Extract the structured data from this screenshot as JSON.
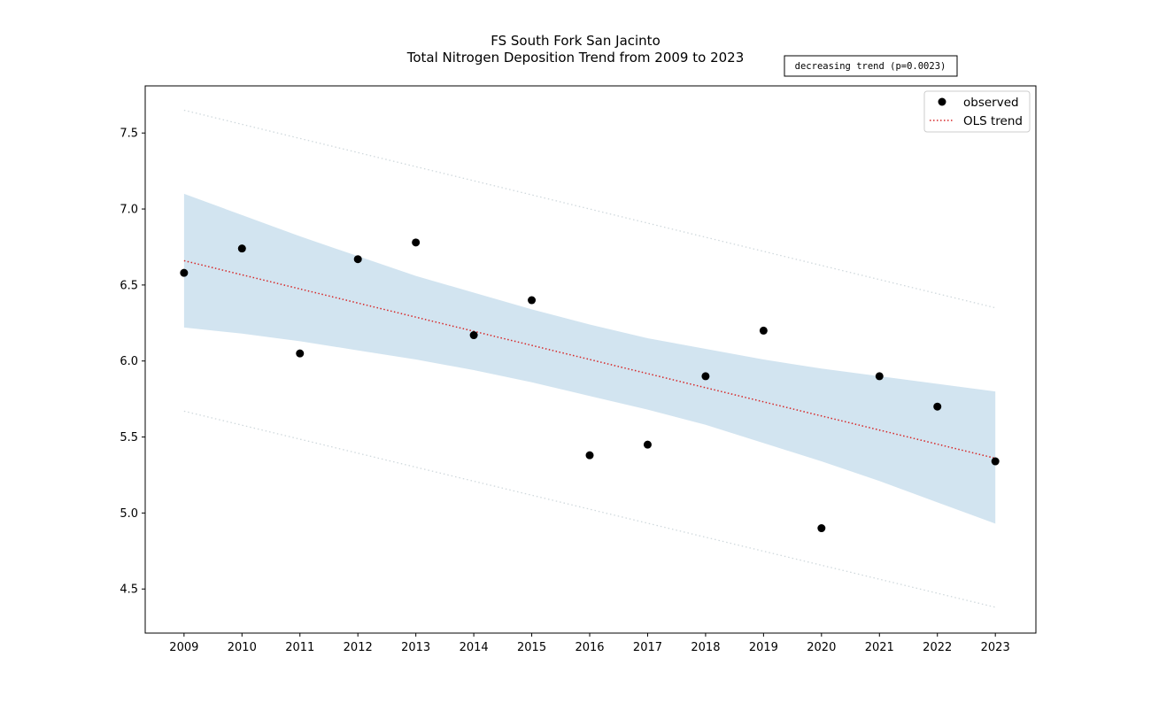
{
  "chart_data": {
    "type": "scatter",
    "title": "FS South Fork San Jacinto",
    "subtitle": "Total Nitrogen Deposition Trend from 2009 to 2023",
    "xlabel": "",
    "ylabel": "",
    "categories": [
      "2009",
      "2010",
      "2011",
      "2012",
      "2013",
      "2014",
      "2015",
      "2016",
      "2017",
      "2018",
      "2019",
      "2020",
      "2021",
      "2022",
      "2023"
    ],
    "xlim": [
      2008.33,
      2023.7
    ],
    "ylim": [
      4.21,
      7.81
    ],
    "yticks": [
      "4.5",
      "5.0",
      "5.5",
      "6.0",
      "6.5",
      "7.0",
      "7.5"
    ],
    "series": [
      {
        "name": "observed",
        "kind": "points",
        "color": "#000000",
        "x": [
          2009,
          2010,
          2011,
          2012,
          2013,
          2014,
          2015,
          2016,
          2017,
          2018,
          2019,
          2020,
          2021,
          2022,
          2023
        ],
        "values": [
          6.58,
          6.74,
          6.05,
          6.67,
          6.78,
          6.17,
          6.4,
          5.38,
          5.45,
          5.9,
          6.2,
          4.9,
          5.9,
          5.7,
          5.34
        ]
      },
      {
        "name": "OLS trend",
        "kind": "line",
        "color": "#d62728",
        "x": [
          2009,
          2023
        ],
        "values": [
          6.66,
          5.36
        ]
      }
    ],
    "confidence_band": {
      "color": "#1f77b4",
      "x": [
        2009,
        2010,
        2011,
        2012,
        2013,
        2014,
        2015,
        2016,
        2017,
        2018,
        2019,
        2020,
        2021,
        2022,
        2023
      ],
      "upper": [
        7.1,
        6.96,
        6.82,
        6.69,
        6.56,
        6.45,
        6.34,
        6.24,
        6.15,
        6.08,
        6.01,
        5.95,
        5.9,
        5.85,
        5.8
      ],
      "lower": [
        6.22,
        6.18,
        6.13,
        6.07,
        6.01,
        5.94,
        5.86,
        5.77,
        5.68,
        5.58,
        5.46,
        5.34,
        5.21,
        5.07,
        4.93
      ]
    },
    "prediction_interval": {
      "color": "#cfd8dc",
      "x": [
        2009,
        2023
      ],
      "upper": [
        7.65,
        6.35
      ],
      "lower": [
        5.67,
        4.38
      ]
    },
    "legend": {
      "position": "top-right",
      "entries": [
        "observed",
        "OLS trend"
      ]
    },
    "annotation": "decreasing trend (p=0.0023)",
    "grid": false
  }
}
